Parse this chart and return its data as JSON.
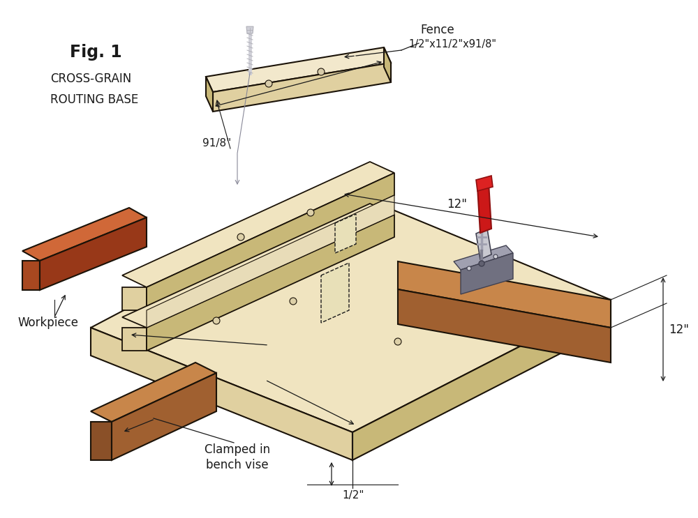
{
  "title": "Fig. 1",
  "subtitle_line1": "CROSS-GRAIN",
  "subtitle_line2": "ROUTING BASE",
  "bg_color": "#ffffff",
  "wood_light": "#f0e4c0",
  "wood_mid": "#e0d0a0",
  "wood_shadow": "#c8b878",
  "wood_dark": "#b8a060",
  "brown_top": "#c8864a",
  "brown_side": "#a06030",
  "brown_front": "#8a5028",
  "workpiece_top": "#d06838",
  "workpiece_side": "#a84820",
  "workpiece_front": "#983818",
  "metal_light": "#c8c8d0",
  "metal_mid": "#a0a0b0",
  "metal_dark": "#707080",
  "red_handle": "#cc1818",
  "red_dark": "#901010",
  "screw_light": "#d0d0d8",
  "screw_mid": "#b0b0b8",
  "edge_dark": "#1a1208",
  "dim_color": "#1a1a1a",
  "annotations": {
    "fence_label": "Fence",
    "fence_dim": "1/2\"x11/2\"x91/8\"",
    "dim_9_1_8": "91/8\"",
    "dim_12_top": "12\"",
    "dim_12_right": "12\"",
    "dim_half": "1/2\"",
    "workpiece": "Workpiece",
    "clamped": "Clamped in\nbench vise"
  },
  "figsize": [
    10.0,
    7.43
  ],
  "dpi": 100
}
